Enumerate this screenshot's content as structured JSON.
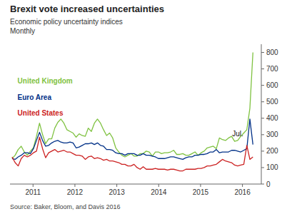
{
  "chart_data": {
    "type": "line",
    "title": "Brexit vote increased uncertainties",
    "subtitle": [
      "Economic policy uncertainty indices",
      "Monthly"
    ],
    "source": "Source: Baker, Bloom, and Davis 2016",
    "annotations": [
      {
        "text": "Jul.",
        "x": 2016.05443,
        "y": 305
      }
    ],
    "legend": "upper left",
    "x": [
      2010.5,
      2010.572785,
      2010.64557,
      2010.718354,
      2010.791139,
      2010.863924,
      2010.936709,
      2011.009494,
      2011.082278,
      2011.155063,
      2011.227848,
      2011.300633,
      2011.373418,
      2011.446203,
      2011.518987,
      2011.591772,
      2011.664557,
      2011.737342,
      2011.810127,
      2011.882911,
      2011.955696,
      2012.028481,
      2012.101266,
      2012.174051,
      2012.246835,
      2012.31962,
      2012.392405,
      2012.46519,
      2012.537975,
      2012.610759,
      2012.683544,
      2012.756329,
      2012.829114,
      2012.901899,
      2012.974684,
      2013.047468,
      2013.120253,
      2013.193038,
      2013.265823,
      2013.338608,
      2013.411392,
      2013.484177,
      2013.556962,
      2013.629747,
      2013.702532,
      2013.775316,
      2013.848101,
      2013.920886,
      2013.993671,
      2014.066456,
      2014.139241,
      2014.212025,
      2014.28481,
      2014.357595,
      2014.43038,
      2014.503165,
      2014.575949,
      2014.648734,
      2014.721519,
      2014.794304,
      2014.867089,
      2014.939873,
      2015.012658,
      2015.085443,
      2015.158228,
      2015.231013,
      2015.303797,
      2015.376582,
      2015.449367,
      2015.522152,
      2015.594937,
      2015.667722,
      2015.740506,
      2015.813291,
      2015.886076,
      2015.958861,
      2016.031646,
      2016.10443,
      2016.177215,
      2016.25
    ],
    "xlim": [
      2010.45,
      2016.45
    ],
    "xticks": [
      2011,
      2012,
      2013,
      2014,
      2015,
      2016
    ],
    "ylim": [
      0,
      850
    ],
    "yticks": [
      0,
      100,
      200,
      300,
      400,
      500,
      600,
      700,
      800
    ],
    "series": [
      {
        "name": "United Kingdom",
        "color": "#7fc241",
        "values": [
          155,
          175,
          210,
          230,
          195,
          175,
          200,
          220,
          290,
          370,
          300,
          245,
          275,
          275,
          340,
          375,
          395,
          370,
          330,
          320,
          310,
          285,
          305,
          295,
          290,
          340,
          320,
          370,
          395,
          370,
          330,
          295,
          310,
          280,
          220,
          195,
          175,
          165,
          175,
          185,
          170,
          170,
          185,
          185,
          200,
          195,
          170,
          195,
          195,
          185,
          190,
          190,
          195,
          205,
          180,
          180,
          185,
          175,
          175,
          185,
          195,
          175,
          190,
          200,
          220,
          225,
          230,
          215,
          280,
          270,
          265,
          280,
          290,
          260,
          265,
          290,
          310,
          330,
          460,
          800
        ]
      },
      {
        "name": "Euro Area",
        "color": "#003087",
        "values": [
          155,
          150,
          165,
          175,
          190,
          190,
          185,
          215,
          265,
          315,
          265,
          230,
          235,
          250,
          260,
          265,
          255,
          250,
          250,
          255,
          250,
          220,
          225,
          235,
          245,
          245,
          250,
          240,
          250,
          235,
          230,
          210,
          210,
          205,
          190,
          185,
          185,
          175,
          185,
          185,
          185,
          175,
          175,
          185,
          175,
          175,
          170,
          165,
          155,
          155,
          155,
          160,
          165,
          165,
          160,
          155,
          150,
          160,
          165,
          165,
          175,
          175,
          180,
          180,
          185,
          195,
          195,
          210,
          190,
          195,
          195,
          195,
          205,
          205,
          200,
          195,
          205,
          215,
          395,
          240
        ]
      },
      {
        "name": "United States",
        "color": "#cc2222",
        "values": [
          165,
          130,
          110,
          155,
          175,
          165,
          175,
          190,
          200,
          285,
          215,
          160,
          190,
          200,
          210,
          195,
          200,
          205,
          195,
          195,
          185,
          175,
          175,
          170,
          150,
          165,
          170,
          155,
          160,
          155,
          145,
          150,
          140,
          140,
          135,
          130,
          120,
          120,
          110,
          110,
          120,
          100,
          90,
          105,
          90,
          90,
          90,
          95,
          90,
          90,
          90,
          85,
          90,
          90,
          85,
          80,
          80,
          90,
          90,
          90,
          90,
          95,
          95,
          100,
          110,
          110,
          115,
          120,
          135,
          150,
          140,
          135,
          130,
          115,
          110,
          115,
          120,
          235,
          150,
          165
        ]
      }
    ]
  }
}
